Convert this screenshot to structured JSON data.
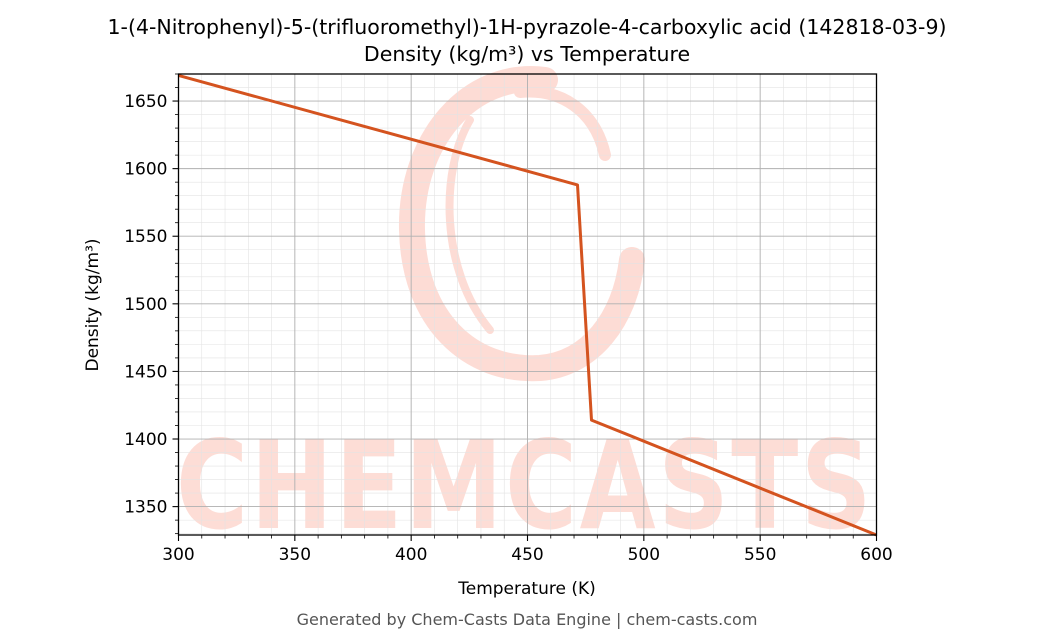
{
  "chart_data": {
    "type": "line",
    "title": "1-(4-Nitrophenyl)-5-(trifluoromethyl)-1H-pyrazole-4-carboxylic acid (142818-03-9)",
    "subtitle": "Density (kg/m³) vs Temperature",
    "xlabel": "Temperature (K)",
    "ylabel": "Density (kg/m³)",
    "xlim": [
      300,
      600
    ],
    "ylim": [
      1329,
      1670
    ],
    "xticks": [
      300,
      350,
      400,
      450,
      500,
      550,
      600
    ],
    "yticks": [
      1350,
      1400,
      1450,
      1500,
      1550,
      1600,
      1650
    ],
    "grid": true,
    "minor_grid": true,
    "series": [
      {
        "color": "#d4531f",
        "x": [
          300,
          471.5,
          477.5,
          600
        ],
        "y": [
          1669,
          1588,
          1414,
          1329
        ]
      }
    ]
  },
  "watermark": {
    "text": "CHEMCASTS",
    "color": "#fdd4cb"
  },
  "footer": "Generated by Chem-Casts Data Engine | chem-casts.com"
}
